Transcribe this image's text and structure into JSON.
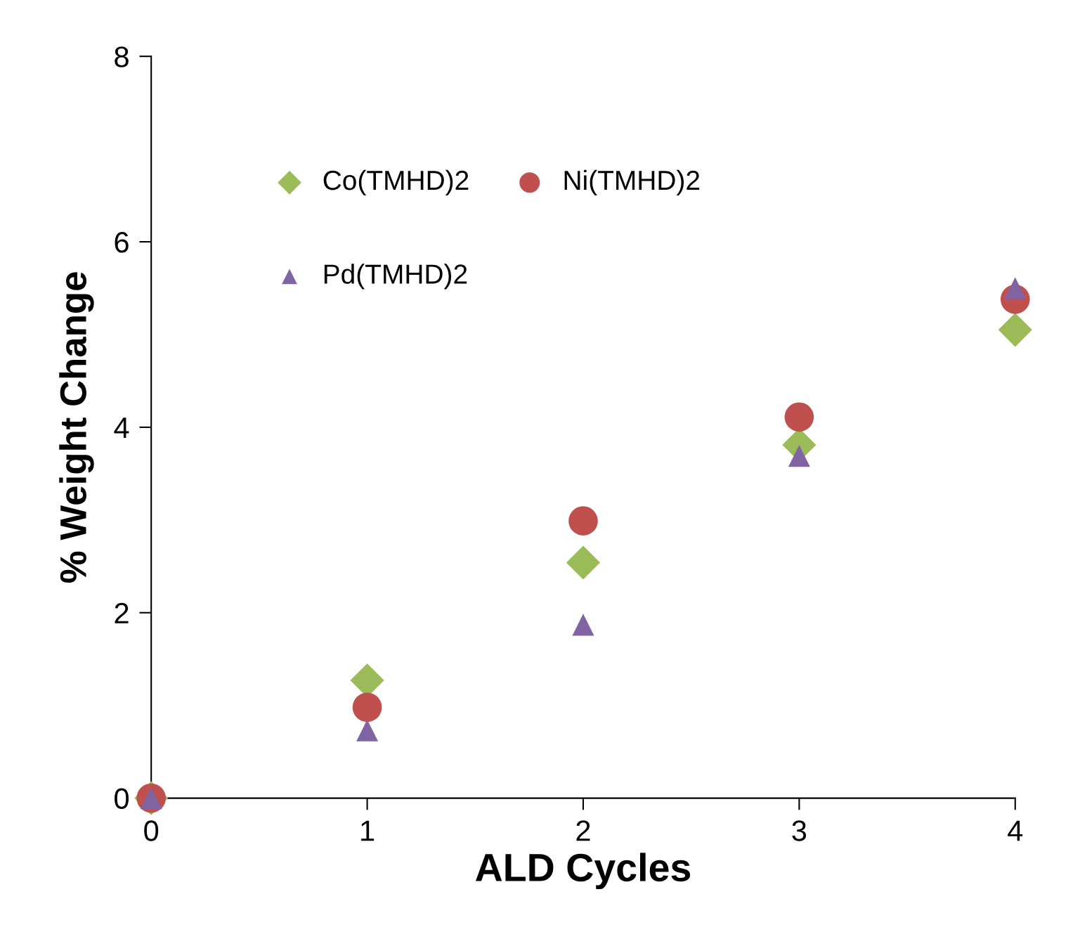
{
  "chart_data": {
    "type": "scatter",
    "xlabel": "ALD Cycles",
    "ylabel": "% Weight Change",
    "x": [
      0,
      1,
      2,
      3,
      4
    ],
    "series": [
      {
        "name": "Co(TMHD)2",
        "color": "#9bbb59",
        "marker": "diamond",
        "values": [
          0,
          1.27,
          2.54,
          3.81,
          5.05
        ]
      },
      {
        "name": "Ni(TMHD)2",
        "color": "#c0504d",
        "marker": "circle",
        "values": [
          0,
          0.98,
          2.99,
          4.11,
          5.38
        ]
      },
      {
        "name": "Pd(TMHD)2",
        "color": "#8064a2",
        "marker": "triangle",
        "values": [
          0,
          0.73,
          1.87,
          3.69,
          5.5
        ]
      }
    ],
    "xlim": [
      0,
      4
    ],
    "xticks": [
      0,
      1,
      2,
      3,
      4
    ],
    "ylim": [
      0,
      8
    ],
    "yticks": [
      0,
      2,
      4,
      6,
      8
    ],
    "grid": false,
    "legend": "top left"
  }
}
